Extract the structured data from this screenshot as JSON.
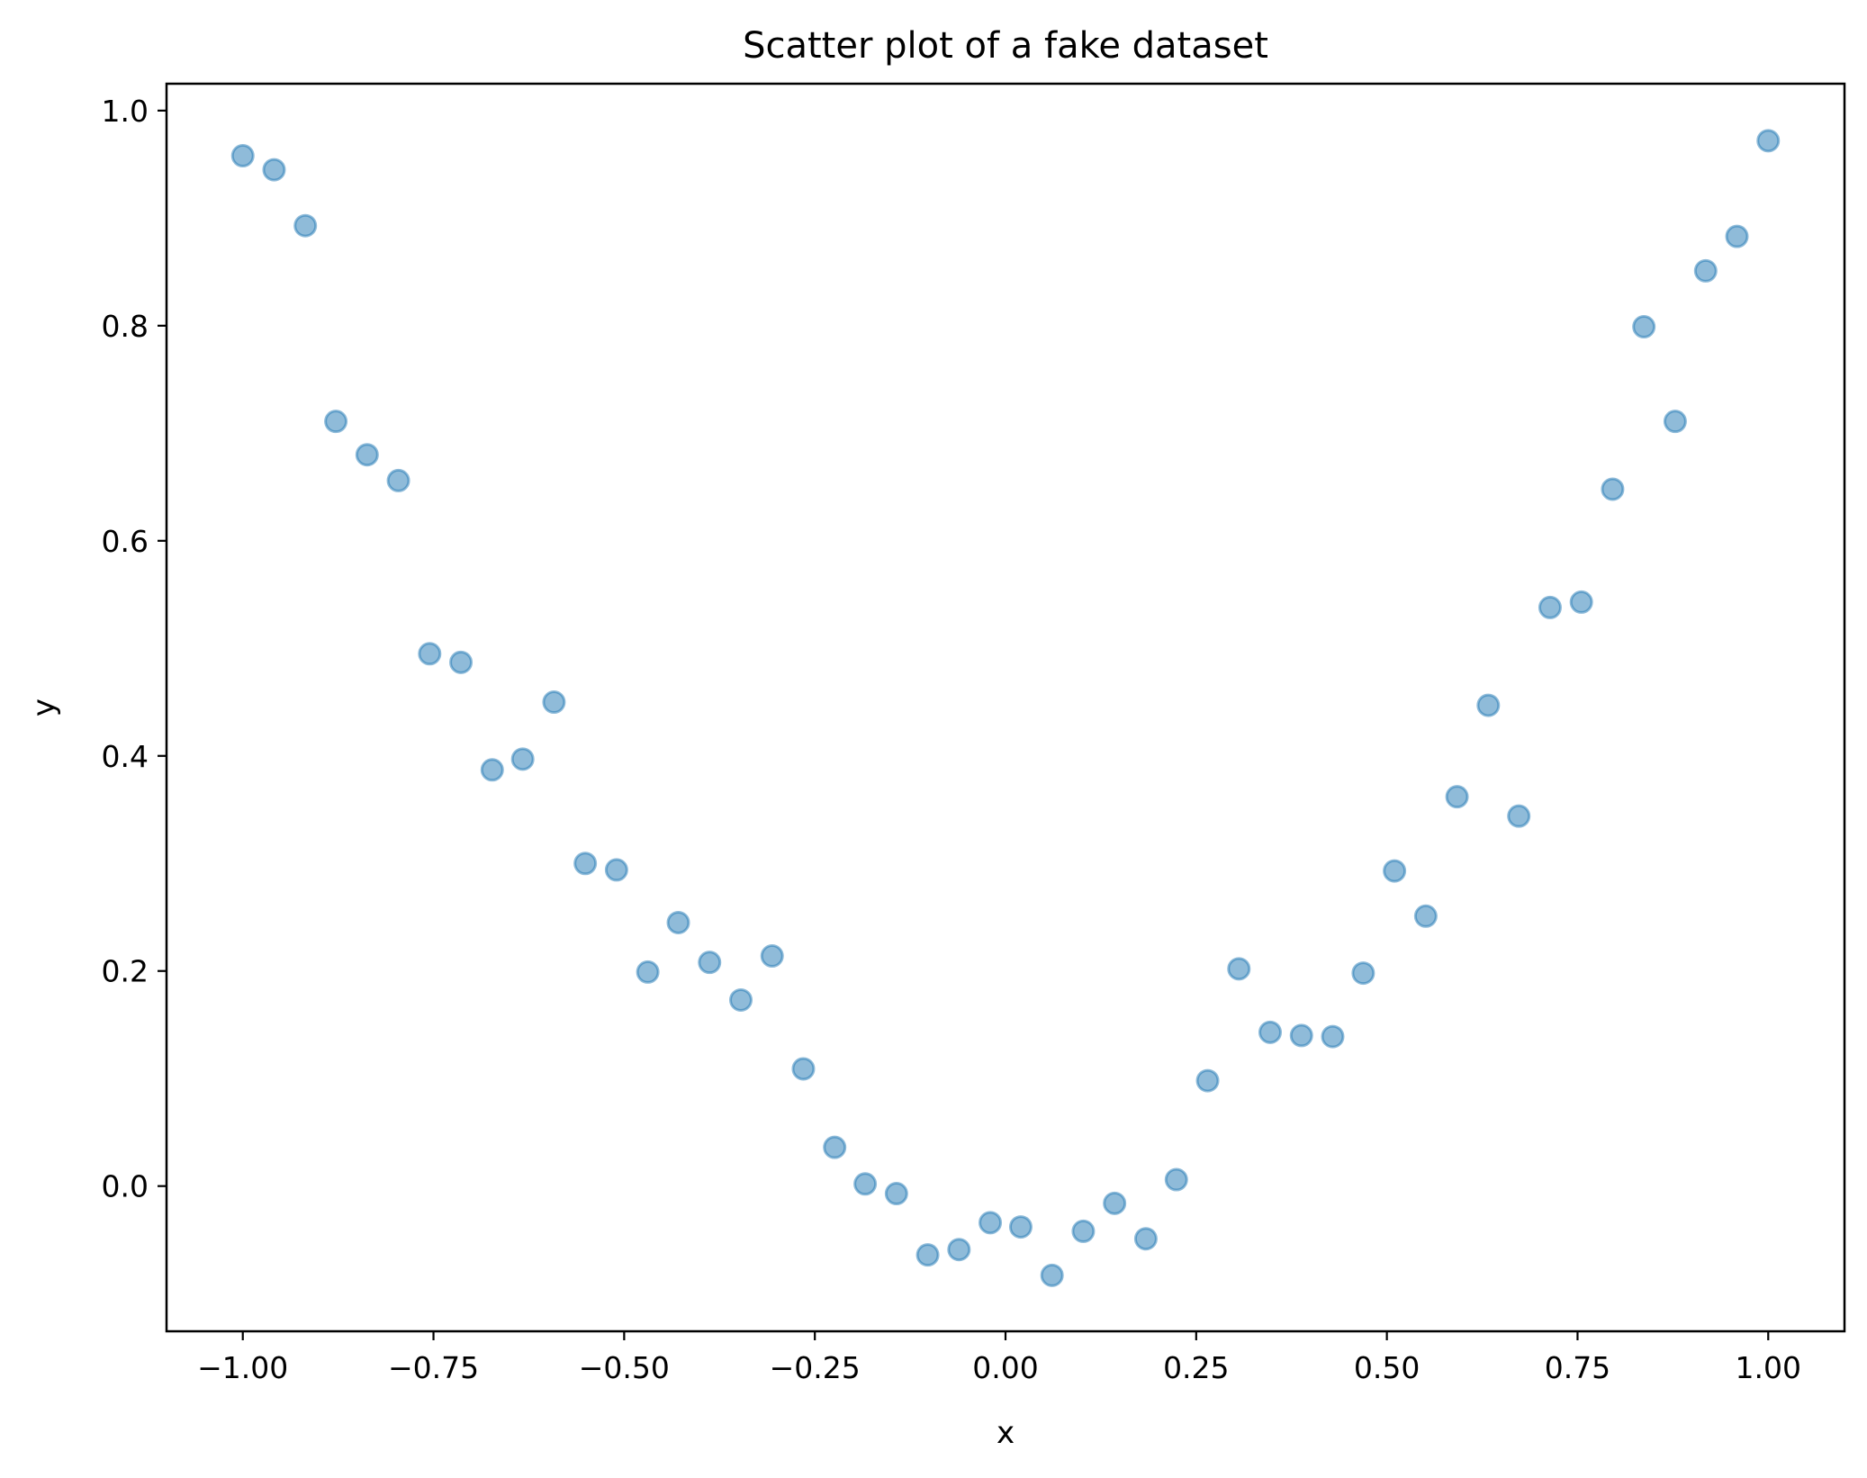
{
  "chart_data": {
    "type": "scatter",
    "title": "Scatter plot of a fake dataset",
    "xlabel": "x",
    "ylabel": "y",
    "xlim": [
      -1.1,
      1.1
    ],
    "ylim": [
      -0.135,
      1.025
    ],
    "xticks": [
      -1.0,
      -0.75,
      -0.5,
      -0.25,
      0.0,
      0.25,
      0.5,
      0.75,
      1.0
    ],
    "xtick_labels": [
      "−1.00",
      "−0.75",
      "−0.50",
      "−0.25",
      "0.00",
      "0.25",
      "0.50",
      "0.75",
      "1.00"
    ],
    "yticks": [
      0.0,
      0.2,
      0.4,
      0.6,
      0.8,
      1.0
    ],
    "ytick_labels": [
      "0.0",
      "0.2",
      "0.4",
      "0.6",
      "0.8",
      "1.0"
    ],
    "grid": false,
    "legend": false,
    "colors": {
      "marker_fill": "#1f77b4",
      "marker_alpha": 0.5,
      "axes": "#000000",
      "background": "#ffffff"
    },
    "series": [
      {
        "x": [
          -1.0,
          -0.959,
          -0.918,
          -0.878,
          -0.837,
          -0.796,
          -0.755,
          -0.714,
          -0.673,
          -0.633,
          -0.592,
          -0.551,
          -0.51,
          -0.469,
          -0.429,
          -0.388,
          -0.347,
          -0.306,
          -0.265,
          -0.224,
          -0.184,
          -0.143,
          -0.102,
          -0.061,
          -0.02,
          0.02,
          0.061,
          0.102,
          0.143,
          0.184,
          0.224,
          0.265,
          0.306,
          0.347,
          0.388,
          0.429,
          0.469,
          0.51,
          0.551,
          0.592,
          0.633,
          0.673,
          0.714,
          0.755,
          0.796,
          0.837,
          0.878,
          0.918,
          0.959,
          1.0
        ],
        "y": [
          0.958,
          0.945,
          0.893,
          0.711,
          0.68,
          0.656,
          0.495,
          0.487,
          0.387,
          0.397,
          0.45,
          0.3,
          0.294,
          0.199,
          0.245,
          0.208,
          0.173,
          0.214,
          0.109,
          0.036,
          0.002,
          -0.007,
          -0.064,
          -0.059,
          -0.034,
          -0.038,
          -0.083,
          -0.042,
          -0.016,
          -0.049,
          0.006,
          0.098,
          0.202,
          0.143,
          0.14,
          0.139,
          0.198,
          0.293,
          0.251,
          0.362,
          0.447,
          0.344,
          0.538,
          0.543,
          0.648,
          0.799,
          0.711,
          0.851,
          0.883,
          0.972
        ]
      }
    ]
  }
}
